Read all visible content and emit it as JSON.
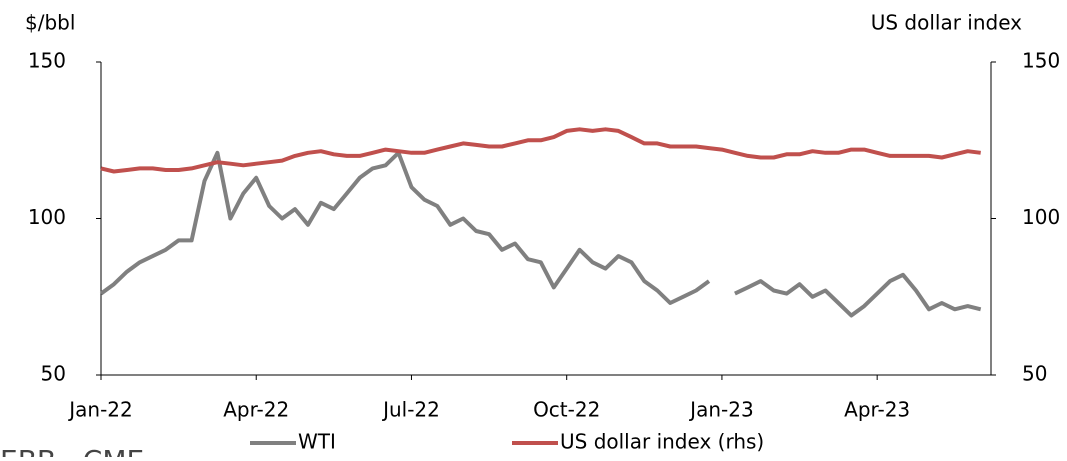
{
  "chart_data": {
    "type": "line",
    "ylabel": "$/bbl",
    "y2label": "US dollar index",
    "source": "EBB , CME",
    "x": [
      0,
      0.25,
      0.5,
      0.75,
      1,
      1.25,
      1.5,
      1.75,
      2,
      2.25,
      2.5,
      2.75,
      3,
      3.25,
      3.5,
      3.75,
      4,
      4.25,
      4.5,
      4.75,
      5,
      5.25,
      5.5,
      5.75,
      6,
      6.25,
      6.5,
      6.75,
      7,
      7.25,
      7.5,
      7.75,
      8,
      8.25,
      8.5,
      8.75,
      9,
      9.25,
      9.5,
      9.75,
      10,
      10.25,
      10.5,
      10.75,
      11,
      11.25,
      11.5,
      11.75,
      12,
      12.25,
      12.5,
      12.75,
      13,
      13.25,
      13.5,
      13.75,
      14,
      14.25,
      14.5,
      14.75,
      15,
      15.25,
      15.5,
      15.75,
      16,
      16.25,
      16.5,
      16.75,
      17
    ],
    "xlim": [
      0,
      17.2
    ],
    "xticks": [
      {
        "value": 0,
        "label": "Jan-22"
      },
      {
        "value": 3,
        "label": "Apr-22"
      },
      {
        "value": 6,
        "label": "Jul-22"
      },
      {
        "value": 9,
        "label": "Oct-22"
      },
      {
        "value": 12,
        "label": "Jan-23"
      },
      {
        "value": 15,
        "label": "Apr-23"
      }
    ],
    "ylim": [
      50,
      150
    ],
    "yticks": [
      50,
      100,
      150
    ],
    "y2lim": [
      50,
      150
    ],
    "y2ticks": [
      50,
      100,
      150
    ],
    "legend": "bottom",
    "series": [
      {
        "name": "WTI",
        "color": "#808080",
        "values": [
          76,
          79,
          83,
          86,
          88,
          90,
          93,
          93,
          112,
          121,
          100,
          108,
          113,
          104,
          100,
          103,
          98,
          105,
          103,
          108,
          113,
          116,
          117,
          121,
          110,
          106,
          104,
          98,
          100,
          96,
          95,
          90,
          92,
          87,
          86,
          78,
          84,
          90,
          86,
          84,
          88,
          86,
          80,
          77,
          73,
          75,
          77,
          80,
          null,
          76,
          78,
          80,
          77,
          76,
          79,
          75,
          77,
          73,
          69,
          72,
          76,
          80,
          82,
          77,
          71,
          73,
          71,
          72,
          71
        ]
      },
      {
        "name": "US dollar index (rhs)",
        "color": "#c0504d",
        "axis": "y2",
        "values": [
          116,
          115,
          115.5,
          116,
          116,
          115.5,
          115.5,
          116,
          117,
          118,
          117.5,
          117,
          117.5,
          118,
          118.5,
          120,
          121,
          121.5,
          120.5,
          120,
          120,
          121,
          122,
          121.5,
          121,
          121,
          122,
          123,
          124,
          123.5,
          123,
          123,
          124,
          125,
          125,
          126,
          128,
          128.5,
          128,
          128.5,
          128,
          126,
          124,
          124,
          123,
          123,
          123,
          122.5,
          122,
          121,
          120,
          119.5,
          119.5,
          120.5,
          120.5,
          121.5,
          121,
          121,
          122,
          122,
          121,
          120,
          120,
          120,
          120,
          119.5,
          120.5,
          121.5,
          121
        ]
      }
    ]
  }
}
